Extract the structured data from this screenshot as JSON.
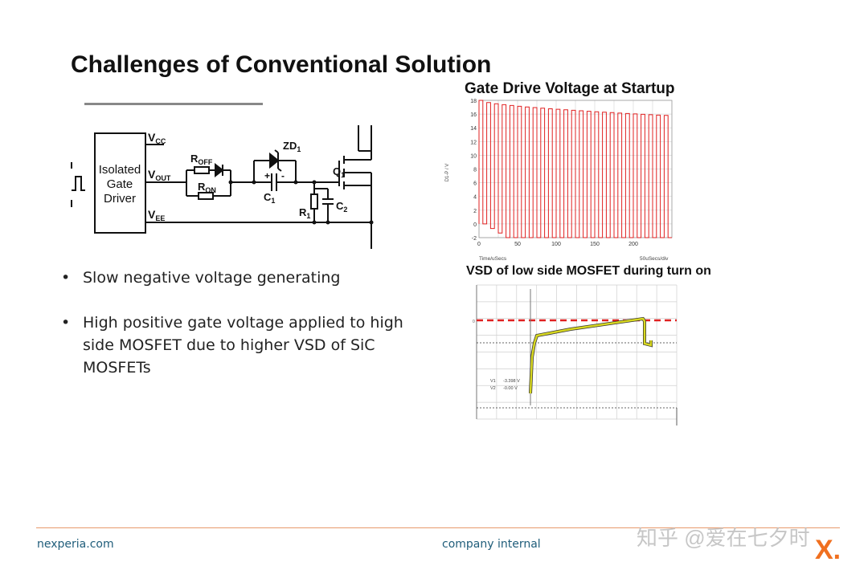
{
  "slide": {
    "title": "Challenges of Conventional Solution",
    "bullets": [
      "Slow negative voltage generating",
      "High positive gate voltage applied to high side MOSFET due to higher VSD of SiC MOSFETs"
    ]
  },
  "circuit": {
    "driver_label": [
      "Isolated",
      "Gate",
      "Driver"
    ],
    "pins": {
      "vcc": "CC",
      "vout": "OUT",
      "vee": "EE",
      "v": "V"
    },
    "components": {
      "roff": "R",
      "roff_sub": "OFF",
      "ron": "R",
      "ron_sub": "ON",
      "zd": "ZD",
      "zd_sub": "1",
      "c1": "C",
      "c1_sub": "1",
      "r1": "R",
      "r1_sub": "1",
      "c2": "C",
      "c2_sub": "2",
      "q1": "Q",
      "q1_sub": "1",
      "plus": "+",
      "minus": "-"
    }
  },
  "chart_data": [
    {
      "type": "line",
      "title": "Gate Drive Voltage at Startup",
      "ylabel": "D1-P / V",
      "xlabel": "Time/uSecs",
      "xscale_label": "50uSecs/div",
      "xlim": [
        0,
        250
      ],
      "ylim": [
        -2,
        18
      ],
      "x_ticks": [
        0,
        50,
        100,
        150,
        200
      ],
      "y_ticks": [
        -2,
        0,
        2,
        4,
        6,
        8,
        10,
        12,
        14,
        16,
        18
      ],
      "grid": true,
      "color": "#e02020",
      "period_us": 10,
      "high_start": 18,
      "high_end": 15.8,
      "low_start": 0,
      "low_end": -2
    },
    {
      "type": "line",
      "title": "VSD of low side MOSFET during turn on",
      "cursor_labels": [
        {
          "name": "V1",
          "value": "-3.398 V"
        },
        {
          "name": "V2",
          "value": "-0.00 V"
        }
      ],
      "marker": "0",
      "grid": true,
      "trace_color": "#d8d820",
      "reference_color": "#e02020"
    }
  ],
  "footer": {
    "left": "nexperia.com",
    "center": "company internal",
    "watermark": "知乎 @爱在七夕时",
    "logo": "X."
  }
}
